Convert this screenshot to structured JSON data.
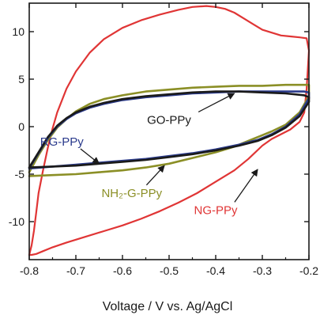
{
  "chart_data": {
    "type": "line",
    "title": "",
    "xlabel": "Voltage / V vs. Ag/AgCl",
    "ylabel": "",
    "xlim": [
      -0.8,
      -0.2
    ],
    "ylim": [
      -14,
      13
    ],
    "x_ticks": [
      "-0.8",
      "-0.7",
      "-0.6",
      "-0.5",
      "-0.4",
      "-0.3",
      "-0.2"
    ],
    "x_tick_values": [
      -0.8,
      -0.7,
      -0.6,
      -0.5,
      -0.4,
      -0.3,
      -0.2
    ],
    "y_ticks": [
      "10",
      "5",
      "0",
      "-5",
      "-10"
    ],
    "y_tick_values": [
      10,
      5,
      0,
      -5,
      -10
    ],
    "grid": false,
    "legend": "none (inline labels with arrows)",
    "series": [
      {
        "name": "NG-PPy",
        "color": "#e03535",
        "x": [
          -0.8,
          -0.795,
          -0.79,
          -0.785,
          -0.78,
          -0.77,
          -0.76,
          -0.75,
          -0.74,
          -0.72,
          -0.7,
          -0.67,
          -0.64,
          -0.6,
          -0.56,
          -0.52,
          -0.48,
          -0.45,
          -0.42,
          -0.4,
          -0.38,
          -0.36,
          -0.34,
          -0.32,
          -0.3,
          -0.28,
          -0.26,
          -0.24,
          -0.22,
          -0.205,
          -0.2,
          -0.205,
          -0.21,
          -0.22,
          -0.24,
          -0.26,
          -0.28,
          -0.3,
          -0.33,
          -0.36,
          -0.4,
          -0.44,
          -0.48,
          -0.52,
          -0.56,
          -0.6,
          -0.64,
          -0.68,
          -0.72,
          -0.75,
          -0.77,
          -0.785,
          -0.795,
          -0.8
        ],
        "y": [
          -13.5,
          -12.5,
          -11.0,
          -9.0,
          -7.0,
          -4.5,
          -2.2,
          -0.2,
          1.5,
          4.0,
          5.8,
          7.8,
          9.2,
          10.4,
          11.2,
          11.8,
          12.3,
          12.6,
          12.7,
          12.6,
          12.4,
          12.0,
          11.4,
          10.8,
          10.2,
          9.9,
          9.6,
          9.5,
          9.4,
          9.3,
          8.0,
          4.0,
          1.5,
          0.5,
          -0.3,
          -0.8,
          -1.3,
          -2.0,
          -3.4,
          -4.6,
          -5.8,
          -7.0,
          -8.0,
          -8.9,
          -9.7,
          -10.4,
          -11.0,
          -11.6,
          -12.2,
          -12.7,
          -13.1,
          -13.4,
          -13.5,
          -13.5
        ]
      },
      {
        "name": "NH₂-G-PPy",
        "color": "#8b8f26",
        "x": [
          -0.8,
          -0.78,
          -0.76,
          -0.74,
          -0.72,
          -0.7,
          -0.67,
          -0.64,
          -0.6,
          -0.55,
          -0.5,
          -0.45,
          -0.4,
          -0.35,
          -0.3,
          -0.25,
          -0.2,
          -0.2,
          -0.22,
          -0.25,
          -0.28,
          -0.3,
          -0.33,
          -0.36,
          -0.4,
          -0.45,
          -0.5,
          -0.55,
          -0.6,
          -0.65,
          -0.7,
          -0.75,
          -0.8
        ],
        "y": [
          -4.8,
          -3.0,
          -1.4,
          -0.1,
          0.8,
          1.6,
          2.4,
          2.9,
          3.3,
          3.7,
          3.9,
          4.1,
          4.2,
          4.3,
          4.3,
          4.4,
          4.4,
          3.2,
          1.5,
          0.2,
          -0.5,
          -0.9,
          -1.5,
          -2.1,
          -2.7,
          -3.3,
          -3.9,
          -4.3,
          -4.6,
          -4.8,
          -5.0,
          -5.1,
          -5.2
        ]
      },
      {
        "name": "RG-PPy",
        "color": "#2a3a8c",
        "x": [
          -0.8,
          -0.78,
          -0.76,
          -0.74,
          -0.72,
          -0.7,
          -0.67,
          -0.64,
          -0.6,
          -0.55,
          -0.5,
          -0.45,
          -0.4,
          -0.35,
          -0.3,
          -0.25,
          -0.21,
          -0.2,
          -0.2,
          -0.22,
          -0.25,
          -0.28,
          -0.31,
          -0.35,
          -0.4,
          -0.45,
          -0.5,
          -0.55,
          -0.6,
          -0.65,
          -0.7,
          -0.75,
          -0.8
        ],
        "y": [
          -4.4,
          -2.8,
          -1.2,
          0.0,
          0.8,
          1.4,
          2.0,
          2.4,
          2.8,
          3.1,
          3.3,
          3.5,
          3.6,
          3.7,
          3.7,
          3.7,
          3.7,
          3.6,
          3.0,
          1.3,
          0.0,
          -0.8,
          -1.4,
          -1.9,
          -2.4,
          -2.8,
          -3.1,
          -3.4,
          -3.6,
          -3.8,
          -4.0,
          -4.2,
          -4.4
        ]
      },
      {
        "name": "GO-PPy",
        "color": "#1a1a1a",
        "x": [
          -0.8,
          -0.78,
          -0.76,
          -0.74,
          -0.72,
          -0.7,
          -0.67,
          -0.64,
          -0.6,
          -0.55,
          -0.5,
          -0.45,
          -0.4,
          -0.35,
          -0.3,
          -0.25,
          -0.21,
          -0.2,
          -0.2,
          -0.22,
          -0.25,
          -0.28,
          -0.31,
          -0.35,
          -0.4,
          -0.45,
          -0.5,
          -0.55,
          -0.6,
          -0.65,
          -0.7,
          -0.75,
          -0.8
        ],
        "y": [
          -4.3,
          -2.7,
          -1.1,
          0.1,
          0.9,
          1.5,
          2.1,
          2.5,
          2.9,
          3.2,
          3.4,
          3.6,
          3.7,
          3.7,
          3.6,
          3.5,
          3.3,
          3.1,
          2.6,
          1.1,
          -0.1,
          -0.9,
          -1.5,
          -2.0,
          -2.5,
          -2.9,
          -3.2,
          -3.5,
          -3.7,
          -3.9,
          -4.1,
          -4.2,
          -4.3
        ]
      }
    ],
    "annotations": [
      {
        "text": "GO-PPy",
        "color": "#1a1a1a",
        "label_x": -0.5,
        "label_y": 0.3,
        "arrow_to": [
          -0.36,
          3.5
        ]
      },
      {
        "text": "RG-PPy",
        "color": "#2a3a8c",
        "label_x": -0.73,
        "label_y": -2.0,
        "arrow_to": [
          -0.65,
          -3.9
        ]
      },
      {
        "text": "NH₂-G-PPy",
        "color": "#8b8f26",
        "label_x": -0.58,
        "label_y": -7.4,
        "arrow_to": [
          -0.51,
          -4.1
        ]
      },
      {
        "text": "NG-PPy",
        "color": "#e03535",
        "label_x": -0.4,
        "label_y": -9.2,
        "arrow_to": [
          -0.31,
          -4.5
        ]
      }
    ]
  }
}
